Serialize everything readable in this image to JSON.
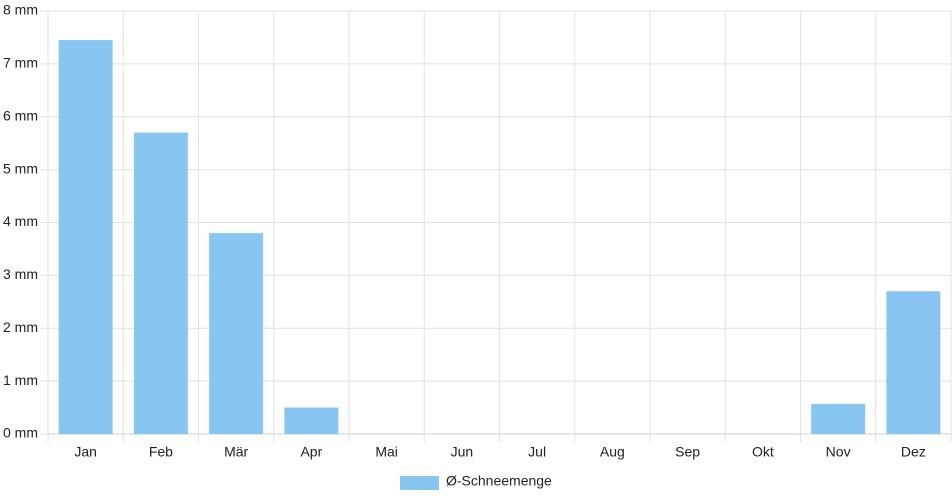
{
  "chart_data": {
    "type": "bar",
    "categories": [
      "Jan",
      "Feb",
      "Mär",
      "Apr",
      "Mai",
      "Jun",
      "Jul",
      "Aug",
      "Sep",
      "Okt",
      "Nov",
      "Dez"
    ],
    "series": [
      {
        "name": "Ø-Schneemenge",
        "color": "#88c6f1",
        "values": [
          7.45,
          5.7,
          3.8,
          0.5,
          0,
          0,
          0,
          0,
          0,
          0,
          0.57,
          2.7
        ]
      }
    ],
    "ylim": [
      0,
      8
    ],
    "yticks": [
      {
        "value": 0,
        "label": "0 mm"
      },
      {
        "value": 1,
        "label": "1 mm"
      },
      {
        "value": 2,
        "label": "2 mm"
      },
      {
        "value": 3,
        "label": "3 mm"
      },
      {
        "value": 4,
        "label": "4 mm"
      },
      {
        "value": 5,
        "label": "5 mm"
      },
      {
        "value": 6,
        "label": "6 mm"
      },
      {
        "value": 7,
        "label": "7 mm"
      },
      {
        "value": 8,
        "label": "8 mm"
      }
    ],
    "grid": true,
    "legend": "bottom"
  }
}
